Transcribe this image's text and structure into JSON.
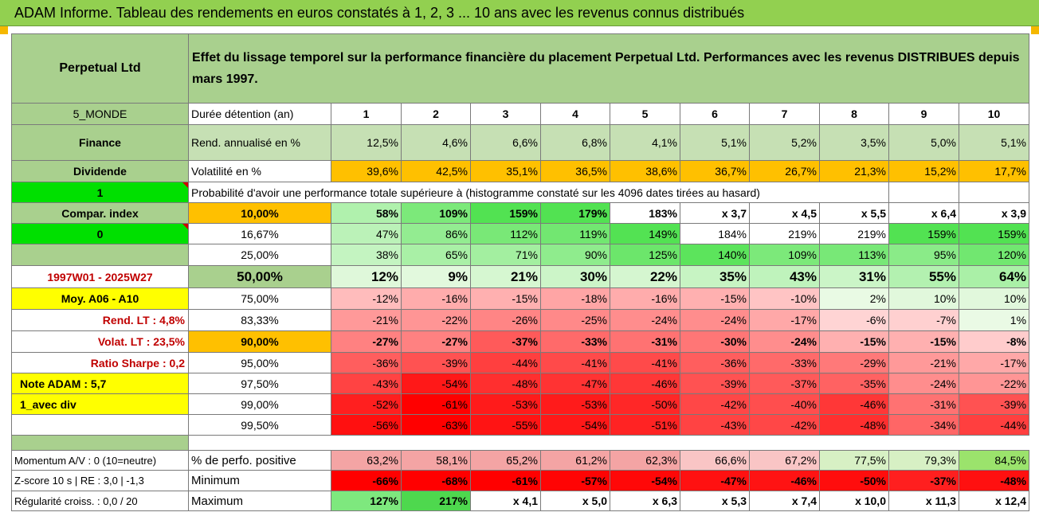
{
  "title": "ADAM Informe. Tableau des rendements en euros constatés à 1, 2, 3 ... 10 ans avec les revenus connus distribués",
  "fund_name": "Perpetual Ltd",
  "description": "Effet du lissage temporel sur la performance financière du placement Perpetual Ltd. Performances avec les revenus DISTRIBUES depuis mars 1997.",
  "left": {
    "zone": "5_MONDE",
    "sector": "Finance",
    "distribution": "Dividende",
    "flag1": "1",
    "compar_index": "Compar. index",
    "flag2": "0",
    "period": "1997W01 - 2025W27",
    "moy": "Moy. A06 - A10",
    "rend_lt": "Rend. LT :   4,8%",
    "volat_lt": "Volat. LT :   23,5%",
    "sharpe": "Ratio Sharpe :   0,2",
    "note": "Note ADAM : 5,7",
    "variant": "1_avec div"
  },
  "header": {
    "label": "Durée détention (an)",
    "years": [
      "1",
      "2",
      "3",
      "4",
      "5",
      "6",
      "7",
      "8",
      "9",
      "10"
    ]
  },
  "rend": {
    "label": "Rend. annualisé en %",
    "values": [
      "12,5%",
      "4,6%",
      "6,6%",
      "6,8%",
      "4,1%",
      "5,1%",
      "5,2%",
      "3,5%",
      "5,0%",
      "5,1%"
    ]
  },
  "volat": {
    "label": "Volatilité en %",
    "values": [
      "39,6%",
      "42,5%",
      "35,1%",
      "36,5%",
      "38,6%",
      "36,7%",
      "26,7%",
      "21,3%",
      "15,2%",
      "17,7%"
    ]
  },
  "proba_label": "Probabilité d'avoir une performance totale supérieure à (histogramme constaté sur les 4096 dates tirées au hasard)",
  "rows": [
    {
      "p": "10,00%",
      "values": [
        "58%",
        "109%",
        "159%",
        "179%",
        "183%",
        "x 3,7",
        "x 4,5",
        "x 5,5",
        "x 6,4",
        "x 3,9"
      ]
    },
    {
      "p": "16,67%",
      "values": [
        "47%",
        "86%",
        "112%",
        "119%",
        "149%",
        "184%",
        "219%",
        "219%",
        "159%",
        "159%"
      ]
    },
    {
      "p": "25,00%",
      "values": [
        "38%",
        "65%",
        "71%",
        "90%",
        "125%",
        "140%",
        "109%",
        "113%",
        "95%",
        "120%"
      ]
    },
    {
      "p": "50,00%",
      "values": [
        "12%",
        "9%",
        "21%",
        "30%",
        "22%",
        "35%",
        "43%",
        "31%",
        "55%",
        "64%"
      ]
    },
    {
      "p": "75,00%",
      "values": [
        "-12%",
        "-16%",
        "-15%",
        "-18%",
        "-16%",
        "-15%",
        "-10%",
        "2%",
        "10%",
        "10%"
      ]
    },
    {
      "p": "83,33%",
      "values": [
        "-21%",
        "-22%",
        "-26%",
        "-25%",
        "-24%",
        "-24%",
        "-17%",
        "-6%",
        "-7%",
        "1%"
      ]
    },
    {
      "p": "90,00%",
      "values": [
        "-27%",
        "-27%",
        "-37%",
        "-33%",
        "-31%",
        "-30%",
        "-24%",
        "-15%",
        "-15%",
        "-8%"
      ]
    },
    {
      "p": "95,00%",
      "values": [
        "-36%",
        "-39%",
        "-44%",
        "-41%",
        "-41%",
        "-36%",
        "-33%",
        "-29%",
        "-21%",
        "-17%"
      ]
    },
    {
      "p": "97,50%",
      "values": [
        "-43%",
        "-54%",
        "-48%",
        "-47%",
        "-46%",
        "-39%",
        "-37%",
        "-35%",
        "-24%",
        "-22%"
      ]
    },
    {
      "p": "99,00%",
      "values": [
        "-52%",
        "-61%",
        "-53%",
        "-53%",
        "-50%",
        "-42%",
        "-40%",
        "-46%",
        "-31%",
        "-39%"
      ]
    },
    {
      "p": "99,50%",
      "values": [
        "-56%",
        "-63%",
        "-55%",
        "-54%",
        "-51%",
        "-43%",
        "-42%",
        "-48%",
        "-34%",
        "-44%"
      ]
    }
  ],
  "footer": [
    {
      "left": "Momentum A/V : 0 (10=neutre)",
      "label": "% de perfo. positive",
      "values": [
        "63,2%",
        "58,1%",
        "65,2%",
        "61,2%",
        "62,3%",
        "66,6%",
        "67,2%",
        "77,5%",
        "79,3%",
        "84,5%"
      ]
    },
    {
      "left": "Z-score 10 s | RE : 3,0 | -1,3",
      "label": "Minimum",
      "values": [
        "-66%",
        "-68%",
        "-61%",
        "-57%",
        "-54%",
        "-47%",
        "-46%",
        "-50%",
        "-37%",
        "-48%"
      ]
    },
    {
      "left": "Régularité croiss. : 0,0 / 20",
      "label": "Maximum",
      "values": [
        "127%",
        "217%",
        "x 4,1",
        "x 5,0",
        "x 6,3",
        "x 5,3",
        "x 7,4",
        "x 10,0",
        "x 11,3",
        "x 12,4"
      ]
    }
  ],
  "colors": {
    "title_bg": "#92d050",
    "header_green": "#a9d08e",
    "orange": "#ffc000",
    "yellow": "#ffff00",
    "bright_green": "#00e000",
    "dark_red": "#ff0000",
    "pale_red": "#f8cbcb",
    "label_red": "#c00000"
  }
}
